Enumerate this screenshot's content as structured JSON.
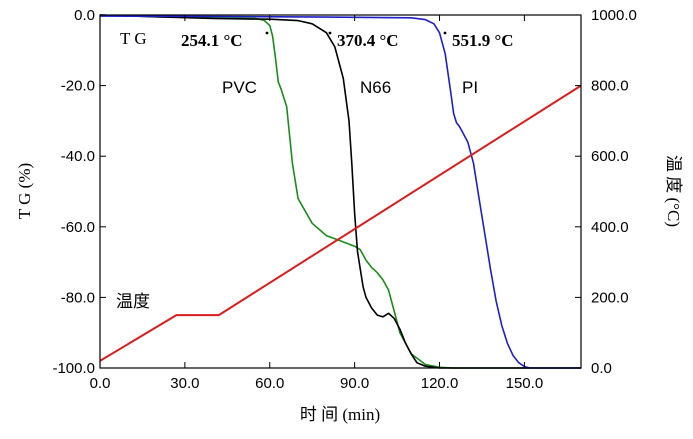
{
  "chart_data": {
    "type": "line",
    "title": "",
    "xlabel": "时 间 (min)",
    "ylabel_left": "T G (%)",
    "ylabel_right": "温 度 (°C)",
    "xlim": [
      0,
      170
    ],
    "ylim_left": [
      -100,
      0
    ],
    "ylim_right": [
      0,
      1000
    ],
    "x_ticks": [
      "0.0",
      "30.0",
      "60.0",
      "90.0",
      "120.0",
      "150.0"
    ],
    "y_left_ticks": [
      "0.0",
      "-20.0",
      "-40.0",
      "-60.0",
      "-80.0",
      "-100.0"
    ],
    "y_right_ticks": [
      "1000.0",
      "800.0",
      "600.0",
      "400.0",
      "200.0",
      "0.0"
    ],
    "panel_label": "T G",
    "temperature_label": "温度",
    "series": [
      {
        "name": "PVC",
        "axis": "left",
        "color": "#1a8c1a",
        "x": [
          0,
          20,
          40,
          55,
          58,
          60,
          61,
          62,
          63,
          64,
          66,
          68,
          70,
          75,
          80,
          85,
          90,
          92,
          94,
          96,
          98,
          100,
          102,
          104,
          106,
          110,
          115,
          120,
          125,
          170
        ],
        "y": [
          0,
          -0.5,
          -0.8,
          -1,
          -1.5,
          -3,
          -6,
          -12,
          -19,
          -21,
          -26,
          -42,
          -52,
          -59,
          -62.5,
          -64,
          -65.5,
          -66.5,
          -69.5,
          -71.5,
          -73,
          -75,
          -78,
          -84,
          -90,
          -96,
          -99,
          -99.8,
          -100,
          -100
        ]
      },
      {
        "name": "N66",
        "axis": "left",
        "color": "#000000",
        "x": [
          0,
          20,
          40,
          60,
          70,
          75,
          80,
          83,
          86,
          88,
          89,
          90,
          91,
          92,
          93,
          94,
          96,
          98,
          100,
          102,
          104,
          106,
          108,
          110,
          112,
          115,
          120,
          170
        ],
        "y": [
          0,
          -0.5,
          -1,
          -1.2,
          -1.6,
          -2.5,
          -5,
          -9,
          -18,
          -30,
          -42,
          -56,
          -67,
          -72,
          -77,
          -80,
          -83,
          -85,
          -85.5,
          -84.5,
          -86,
          -89,
          -93,
          -96,
          -98.5,
          -99.5,
          -100,
          -100
        ]
      },
      {
        "name": "PI",
        "axis": "left",
        "color": "#1f1fc8",
        "x": [
          0,
          40,
          80,
          110,
          115,
          118,
          120,
          122,
          124,
          125,
          126,
          127,
          128,
          130,
          132,
          134,
          136,
          138,
          140,
          142,
          144,
          146,
          148,
          150,
          152,
          170
        ],
        "y": [
          -0.3,
          -0.4,
          -0.6,
          -0.8,
          -1.3,
          -2.5,
          -5,
          -11,
          -22,
          -28,
          -30.5,
          -31.5,
          -33,
          -36,
          -42,
          -52,
          -62,
          -72,
          -81,
          -88,
          -93,
          -96.5,
          -98.5,
          -99.6,
          -100,
          -100
        ]
      },
      {
        "name": "温度",
        "axis": "right",
        "color": "#d81e1e",
        "x": [
          0,
          27,
          42,
          170
        ],
        "y": [
          20,
          150,
          150,
          800
        ]
      }
    ],
    "annotations": [
      {
        "text": "254.1 °C",
        "series": "PVC"
      },
      {
        "text": "370.4 °C",
        "series": "N66"
      },
      {
        "text": "551.9 °C",
        "series": "PI"
      }
    ]
  }
}
